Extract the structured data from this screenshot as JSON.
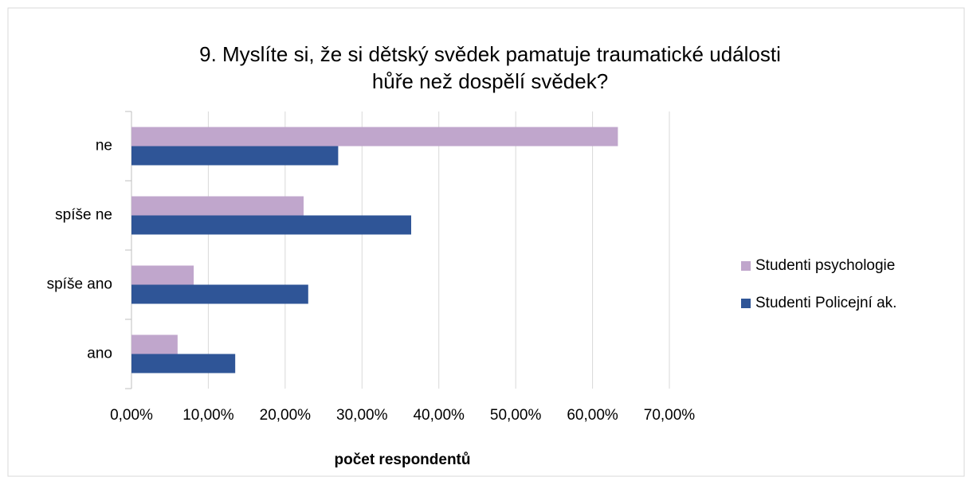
{
  "chart_data": {
    "type": "bar",
    "orientation": "horizontal",
    "title": [
      "9. Myslíte si, že si dětský svědek pamatuje traumatické události",
      "hůře než dospělí svědek?"
    ],
    "xlabel": "počet respondentů",
    "categories": [
      "ne",
      "spíše ne",
      "spíše ano",
      "ano"
    ],
    "series": [
      {
        "name": "Studenti psychologie",
        "color": "#c0a6cc",
        "values": [
          63.3,
          22.4,
          8.1,
          6.0
        ]
      },
      {
        "name": "Studenti Policejní ak.",
        "color": "#2f5597",
        "values": [
          26.9,
          36.4,
          23.0,
          13.5
        ]
      }
    ],
    "xlim": [
      0,
      70
    ],
    "xticks": [
      {
        "value": 0,
        "label": "0,00%"
      },
      {
        "value": 10,
        "label": "10,00%"
      },
      {
        "value": 20,
        "label": "20,00%"
      },
      {
        "value": 30,
        "label": "30,00%"
      },
      {
        "value": 40,
        "label": "40,00%"
      },
      {
        "value": 50,
        "label": "50,00%"
      },
      {
        "value": 60,
        "label": "60,00%"
      },
      {
        "value": 70,
        "label": "70,00%"
      }
    ],
    "grid": true,
    "legend": "right"
  }
}
